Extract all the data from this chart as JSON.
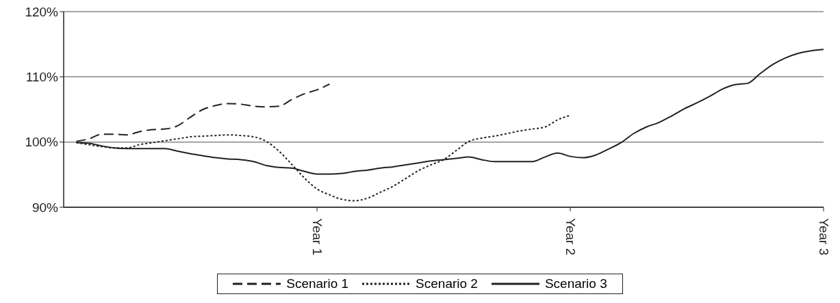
{
  "chart_data": {
    "type": "line",
    "categories": [
      null,
      null,
      null,
      null,
      null,
      null,
      null,
      null,
      null,
      null,
      null,
      null,
      null,
      null,
      null,
      null,
      null,
      null,
      null,
      null,
      "Year 1",
      null,
      null,
      null,
      null,
      null,
      null,
      null,
      null,
      null,
      null,
      null,
      null,
      null,
      null,
      null,
      null,
      null,
      null,
      null,
      "Year 2",
      null,
      null,
      null,
      null,
      null,
      null,
      null,
      null,
      null,
      null,
      null,
      null,
      null,
      null,
      null,
      null,
      null,
      null,
      null,
      "Year 3"
    ],
    "ylim": [
      90,
      120
    ],
    "yticks": [
      {
        "value": 90,
        "label": "90%"
      },
      {
        "value": 100,
        "label": "100%"
      },
      {
        "value": 110,
        "label": "110%"
      },
      {
        "value": 120,
        "label": "120%"
      }
    ],
    "grid": "y",
    "legend": "bottom",
    "marker": "none",
    "series": [
      {
        "name": "Scenario 1",
        "color": "#231f20",
        "line_style": "dashed",
        "values": [
          null,
          100.1,
          100.5,
          101.2,
          101.2,
          101.1,
          101.6,
          101.9,
          102.0,
          102.5,
          103.8,
          105.0,
          105.6,
          105.9,
          105.8,
          105.5,
          105.4,
          105.5,
          106.5,
          107.4,
          108.0,
          108.9,
          null,
          null,
          null,
          null,
          null,
          null,
          null,
          null,
          null,
          null,
          null,
          null,
          null,
          null,
          null,
          null,
          null,
          null,
          null,
          null,
          null,
          null,
          null,
          null,
          null,
          null,
          null,
          null,
          null,
          null,
          null,
          null,
          null,
          null,
          null,
          null,
          null,
          null,
          null
        ]
      },
      {
        "name": "Scenario 2",
        "color": "#231f20",
        "line_style": "dotted",
        "values": [
          null,
          99.9,
          99.6,
          99.3,
          99.1,
          99.1,
          99.6,
          99.9,
          100.2,
          100.5,
          100.8,
          100.9,
          101.0,
          101.1,
          101.0,
          100.8,
          100.1,
          98.6,
          96.6,
          94.5,
          92.8,
          91.9,
          91.2,
          91.0,
          91.4,
          92.3,
          93.2,
          94.4,
          95.6,
          96.5,
          97.3,
          98.7,
          100.1,
          100.6,
          100.9,
          101.3,
          101.7,
          102.0,
          102.3,
          103.4,
          104.1,
          null,
          null,
          null,
          null,
          null,
          null,
          null,
          null,
          null,
          null,
          null,
          null,
          null,
          null,
          null,
          null,
          null,
          null,
          null,
          null
        ]
      },
      {
        "name": "Scenario 3",
        "color": "#231f20",
        "line_style": "solid",
        "values": [
          null,
          99.9,
          99.8,
          99.4,
          99.1,
          99.0,
          99.0,
          99.0,
          99.0,
          98.6,
          98.2,
          97.9,
          97.6,
          97.4,
          97.3,
          97.0,
          96.4,
          96.1,
          96.0,
          95.5,
          95.1,
          95.1,
          95.2,
          95.5,
          95.7,
          96.0,
          96.2,
          96.5,
          96.8,
          97.1,
          97.3,
          97.5,
          97.7,
          97.3,
          97.0,
          97.0,
          97.0,
          97.0,
          97.7,
          98.3,
          97.8,
          97.6,
          98.0,
          98.9,
          99.9,
          101.3,
          102.3,
          103.0,
          104.0,
          105.1,
          106.0,
          107.0,
          108.1,
          108.8,
          109.0,
          110.5,
          111.9,
          112.9,
          113.6,
          114.0,
          114.2
        ]
      }
    ]
  }
}
